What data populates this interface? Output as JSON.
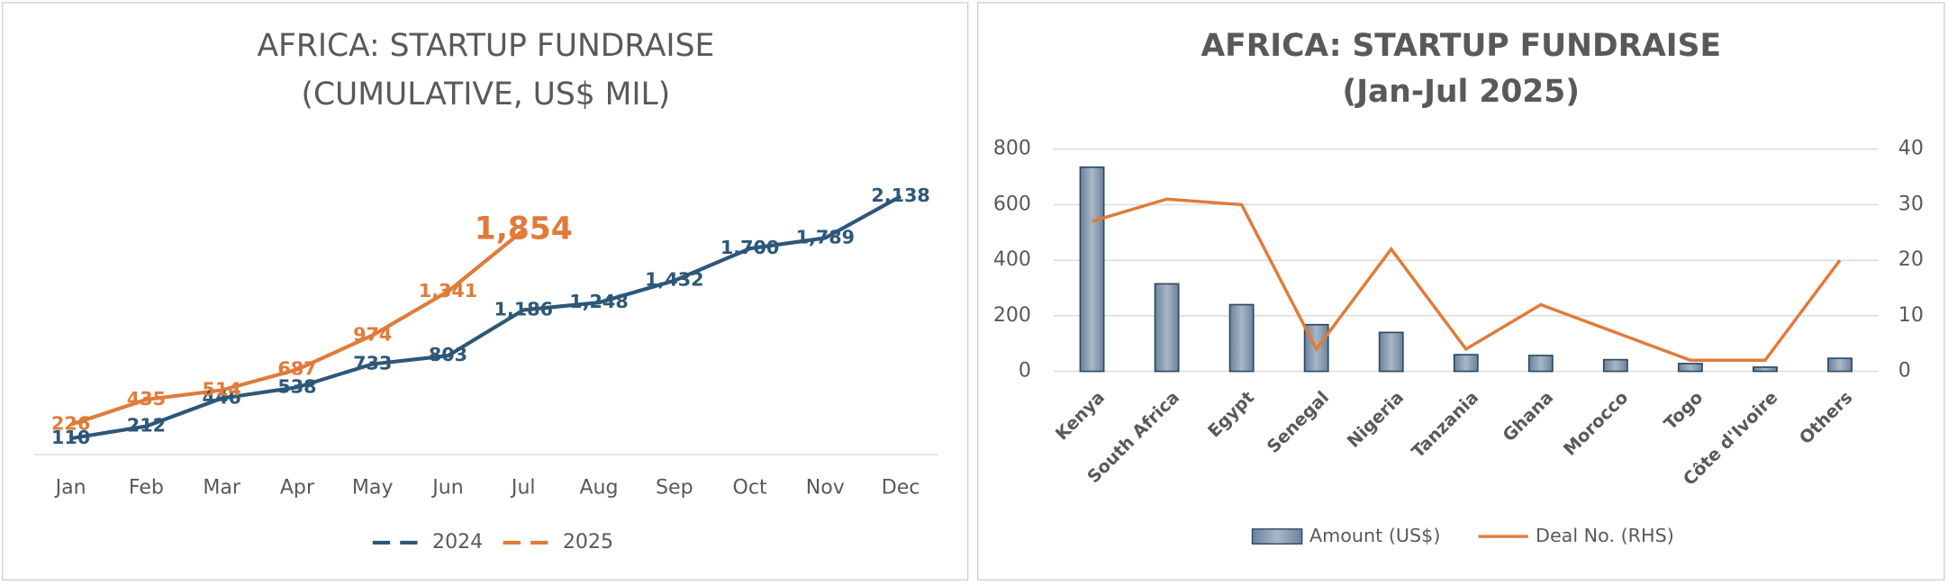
{
  "chart_data": [
    {
      "type": "line",
      "title": [
        "AFRICA: STARTUP FUNDRAISE",
        "(CUMULATIVE, US$ MIL)"
      ],
      "categories": [
        "Jan",
        "Feb",
        "Mar",
        "Apr",
        "May",
        "Jun",
        "Jul",
        "Aug",
        "Sep",
        "Oct",
        "Nov",
        "Dec"
      ],
      "series": [
        {
          "name": "2024",
          "color": "#2d5778",
          "values": [
            110,
            212,
            446,
            538,
            733,
            803,
            1186,
            1248,
            1432,
            1700,
            1789,
            2138
          ],
          "value_labels": [
            "110",
            "212",
            "446",
            "538",
            "733",
            "803",
            "1,186",
            "1,248",
            "1,432",
            "1,700",
            "1,789",
            "2,138"
          ]
        },
        {
          "name": "2025",
          "color": "#e07b39",
          "values": [
            226,
            435,
            514,
            687,
            974,
            1341,
            1854,
            null,
            null,
            null,
            null,
            null
          ],
          "value_labels": [
            "226",
            "435",
            "514",
            "687",
            "974",
            "1,341",
            "1,854",
            null,
            null,
            null,
            null,
            null
          ]
        }
      ],
      "legend": "bottom"
    },
    {
      "type": "bar_line",
      "title": [
        "AFRICA: STARTUP FUNDRAISE",
        "(Jan-Jul 2025)"
      ],
      "categories": [
        "Kenya",
        "South Africa",
        "Egypt",
        "Senegal",
        "Nigeria",
        "Tanzania",
        "Ghana",
        "Morocco",
        "Togo",
        "Côte d'Ivoire",
        "Others"
      ],
      "series": [
        {
          "name": "Amount (US$)",
          "color": "#8497ad",
          "type": "bar",
          "values": [
            735,
            315,
            240,
            168,
            140,
            60,
            57,
            42,
            28,
            15,
            47
          ]
        },
        {
          "name": "Deal No. (RHS)",
          "color": "#e07b39",
          "type": "line",
          "axis": "y2",
          "values": [
            27,
            31,
            30,
            4,
            22,
            4,
            12,
            7,
            2,
            2,
            20
          ]
        }
      ],
      "ylim": [
        0,
        800
      ],
      "yticks": [
        0,
        200,
        400,
        600,
        800
      ],
      "y2lim": [
        0,
        40
      ],
      "y2ticks": [
        0,
        10,
        20,
        30,
        40
      ],
      "grid": true,
      "legend": "bottom"
    }
  ]
}
